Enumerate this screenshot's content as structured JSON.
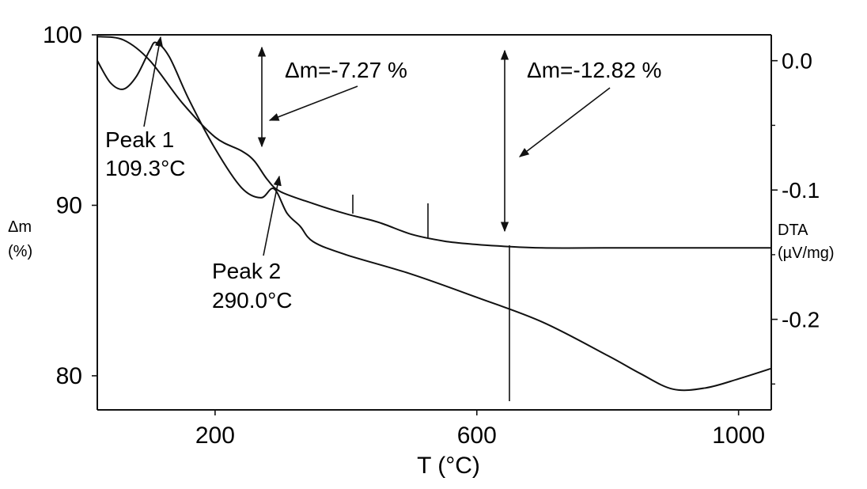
{
  "chart_data": {
    "type": "line",
    "xlabel": "T (°C)",
    "ylabel": "Δm\n(%)",
    "y2label": "DTA\n(µV/mg)",
    "xlim": [
      20,
      1050
    ],
    "ylim": [
      78,
      100
    ],
    "y2lim": [
      -0.27,
      0.02
    ],
    "x_ticks": [
      200,
      600,
      1000
    ],
    "y_ticks": [
      80,
      90,
      100
    ],
    "y2_ticks": [
      {
        "value": 0.0,
        "label": "0.0"
      },
      {
        "value": -0.1,
        "label": "-0.1"
      },
      {
        "value": -0.2,
        "label": "-0.2"
      }
    ],
    "series": [
      {
        "axis": "left",
        "x": [
          20,
          60,
          100,
          150,
          200,
          240,
          260,
          280,
          300,
          350,
          400,
          450,
          500,
          550,
          600,
          640,
          700,
          800,
          900,
          1000,
          1050
        ],
        "values": [
          99.9,
          99.7,
          98.5,
          96.0,
          94.0,
          93.2,
          92.6,
          91.5,
          90.8,
          90.1,
          89.5,
          89.0,
          88.3,
          87.9,
          87.7,
          87.6,
          87.5,
          87.5,
          87.5,
          87.5,
          87.5
        ]
      },
      {
        "axis": "right",
        "x": [
          20,
          40,
          60,
          80,
          100,
          110,
          130,
          160,
          200,
          240,
          270,
          290,
          310,
          330,
          350,
          400,
          500,
          600,
          700,
          800,
          850,
          900,
          950,
          1000,
          1050
        ],
        "values": [
          0.0,
          -0.017,
          -0.022,
          -0.012,
          0.008,
          0.014,
          0.003,
          -0.03,
          -0.068,
          -0.098,
          -0.106,
          -0.099,
          -0.118,
          -0.128,
          -0.14,
          -0.15,
          -0.165,
          -0.183,
          -0.202,
          -0.228,
          -0.242,
          -0.254,
          -0.253,
          -0.246,
          -0.238
        ]
      }
    ],
    "annotations": [
      {
        "label": "Δm=-7.27 %"
      },
      {
        "label": "Δm=-12.82 %"
      },
      {
        "label": "Peak 1",
        "sub": "109.3°C"
      },
      {
        "label": "Peak 2",
        "sub": "290.0°C"
      }
    ]
  }
}
